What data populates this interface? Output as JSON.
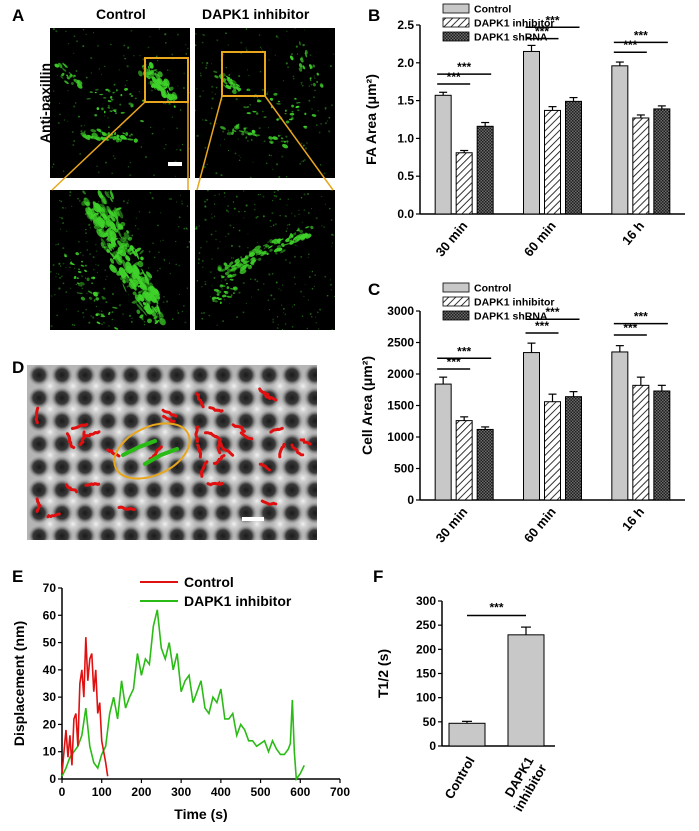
{
  "panels": {
    "A": {
      "letter": "A",
      "col_control": "Control",
      "col_inhibitor": "DAPK1 inhibitor",
      "row_label": "Anti-paxillin"
    },
    "D": {
      "letter": "D"
    }
  },
  "colors": {
    "grey_bar": "#c8c8c8",
    "red_track": "#e01010",
    "green_track": "#2bbb16",
    "zoom_box": "#e8a61c",
    "fluor_green": "#3fd22a"
  },
  "chart_data": [
    {
      "id": "B",
      "letter": "B",
      "type": "bar",
      "ylabel": "FA Area (μm²)",
      "ylim": [
        0,
        2.5
      ],
      "yticks": [
        "0.0",
        "0.5",
        "1.0",
        "1.5",
        "2.0",
        "2.5"
      ],
      "categories": [
        "30 min",
        "60 min",
        "16 h"
      ],
      "legend": [
        "Control",
        "DAPK1 inhibitor",
        "DAPK1 shRNA"
      ],
      "series": [
        {
          "name": "Control",
          "values": [
            1.57,
            2.15,
            1.96
          ],
          "errors": [
            0.04,
            0.08,
            0.05
          ]
        },
        {
          "name": "DAPK1 inhibitor",
          "values": [
            0.81,
            1.37,
            1.27
          ],
          "errors": [
            0.03,
            0.05,
            0.04
          ]
        },
        {
          "name": "DAPK1 shRNA",
          "values": [
            1.16,
            1.49,
            1.39
          ],
          "errors": [
            0.05,
            0.05,
            0.04
          ]
        }
      ],
      "significance": [
        "***",
        "***",
        "***",
        "***",
        "***",
        "***"
      ]
    },
    {
      "id": "C",
      "letter": "C",
      "type": "bar",
      "ylabel": "Cell Area (μm²)",
      "ylim": [
        0,
        3000
      ],
      "yticks": [
        "0",
        "500",
        "1000",
        "1500",
        "2000",
        "2500",
        "3000"
      ],
      "categories": [
        "30 min",
        "60 min",
        "16 h"
      ],
      "legend": [
        "Control",
        "DAPK1 inhibitor",
        "DAPK1 shRNA"
      ],
      "series": [
        {
          "name": "Control",
          "values": [
            1840,
            2340,
            2350
          ],
          "errors": [
            110,
            150,
            100
          ]
        },
        {
          "name": "DAPK1 inhibitor",
          "values": [
            1260,
            1560,
            1820
          ],
          "errors": [
            60,
            120,
            130
          ]
        },
        {
          "name": "DAPK1 shRNA",
          "values": [
            1120,
            1640,
            1730
          ],
          "errors": [
            40,
            80,
            90
          ]
        }
      ],
      "significance": [
        "***",
        "***",
        "***",
        "***",
        "***",
        "***"
      ]
    },
    {
      "id": "E",
      "letter": "E",
      "type": "line",
      "xlabel": "Time (s)",
      "ylabel": "Displacement (nm)",
      "xlim": [
        0,
        700
      ],
      "ylim": [
        0,
        70
      ],
      "xticks": [
        "0",
        "100",
        "200",
        "300",
        "400",
        "500",
        "600",
        "700"
      ],
      "yticks": [
        "0",
        "10",
        "20",
        "30",
        "40",
        "50",
        "60",
        "70"
      ],
      "series": [
        {
          "name": "Control",
          "x": [
            0,
            5,
            10,
            15,
            20,
            25,
            30,
            35,
            40,
            45,
            50,
            55,
            60,
            65,
            70,
            75,
            80,
            85,
            90,
            95,
            100,
            105,
            110,
            115
          ],
          "y": [
            2,
            10,
            18,
            8,
            16,
            5,
            22,
            24,
            12,
            35,
            40,
            30,
            52,
            36,
            44,
            46,
            32,
            40,
            24,
            28,
            14,
            10,
            6,
            1
          ]
        },
        {
          "name": "DAPK1 inhibitor",
          "x": [
            0,
            10,
            20,
            30,
            40,
            50,
            60,
            70,
            80,
            90,
            100,
            110,
            120,
            130,
            140,
            150,
            160,
            170,
            180,
            190,
            200,
            210,
            220,
            230,
            240,
            250,
            260,
            270,
            280,
            290,
            300,
            310,
            320,
            330,
            340,
            350,
            360,
            370,
            380,
            390,
            400,
            410,
            420,
            430,
            440,
            450,
            460,
            470,
            480,
            490,
            500,
            510,
            520,
            530,
            540,
            550,
            560,
            570,
            575,
            580,
            585,
            590,
            600,
            610
          ],
          "y": [
            1,
            4,
            8,
            10,
            12,
            16,
            26,
            12,
            6,
            4,
            9,
            12,
            24,
            30,
            22,
            36,
            26,
            30,
            33,
            46,
            38,
            44,
            42,
            56,
            62,
            48,
            44,
            50,
            40,
            46,
            32,
            36,
            38,
            28,
            32,
            36,
            26,
            24,
            30,
            28,
            33,
            22,
            22,
            24,
            16,
            20,
            18,
            14,
            14,
            12,
            13,
            14,
            10,
            14,
            11,
            9,
            9,
            11,
            13,
            29,
            10,
            0,
            2,
            5
          ]
        }
      ]
    },
    {
      "id": "F",
      "letter": "F",
      "type": "bar",
      "ylabel": "T1/2 (s)",
      "ylim": [
        0,
        300
      ],
      "yticks": [
        "0",
        "50",
        "100",
        "150",
        "200",
        "250",
        "300"
      ],
      "categories": [
        "Control",
        "DAPK1 inhibitor"
      ],
      "category_lines": [
        [
          "Control"
        ],
        [
          "DAPK1",
          "inhibitor"
        ]
      ],
      "values": [
        47,
        230
      ],
      "errors": [
        4,
        16
      ],
      "significance": [
        "***"
      ]
    }
  ]
}
